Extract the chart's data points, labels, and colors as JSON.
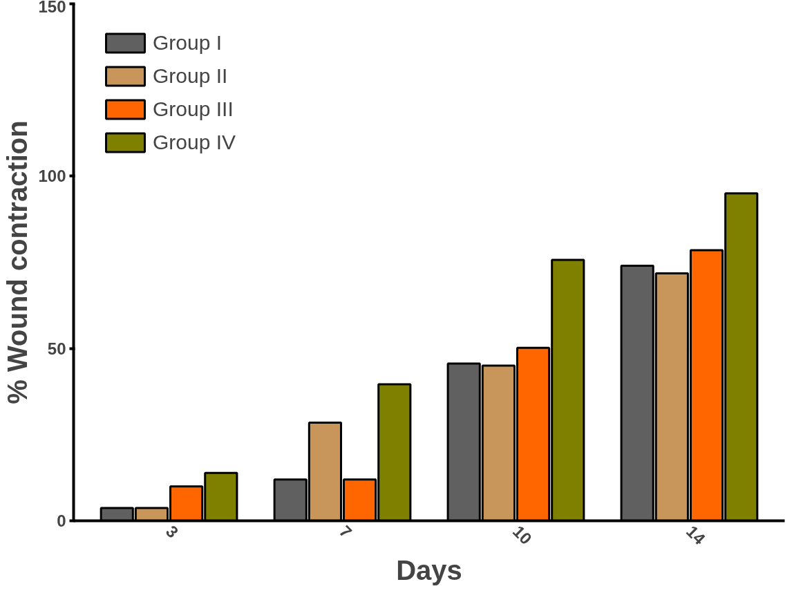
{
  "chart_data": {
    "type": "bar",
    "xlabel": "Days",
    "ylabel": "% Wound contraction",
    "categories": [
      "3",
      "7",
      "10",
      "14"
    ],
    "series": [
      {
        "name": "Group I",
        "color": "#606060",
        "values": [
          3.7,
          12,
          45.6,
          74
        ]
      },
      {
        "name": "Group II",
        "color": "#c8965a",
        "values": [
          3.7,
          28.5,
          45,
          71.8
        ]
      },
      {
        "name": "Group III",
        "color": "#ff6600",
        "values": [
          10,
          12,
          50.2,
          78.5
        ]
      },
      {
        "name": "Group IV",
        "color": "#808000",
        "values": [
          13.9,
          39.6,
          75.7,
          95
        ]
      }
    ],
    "ylim": [
      0,
      150
    ],
    "yticks": [
      0,
      50,
      100,
      150
    ],
    "grid": false,
    "legend": "top left"
  }
}
